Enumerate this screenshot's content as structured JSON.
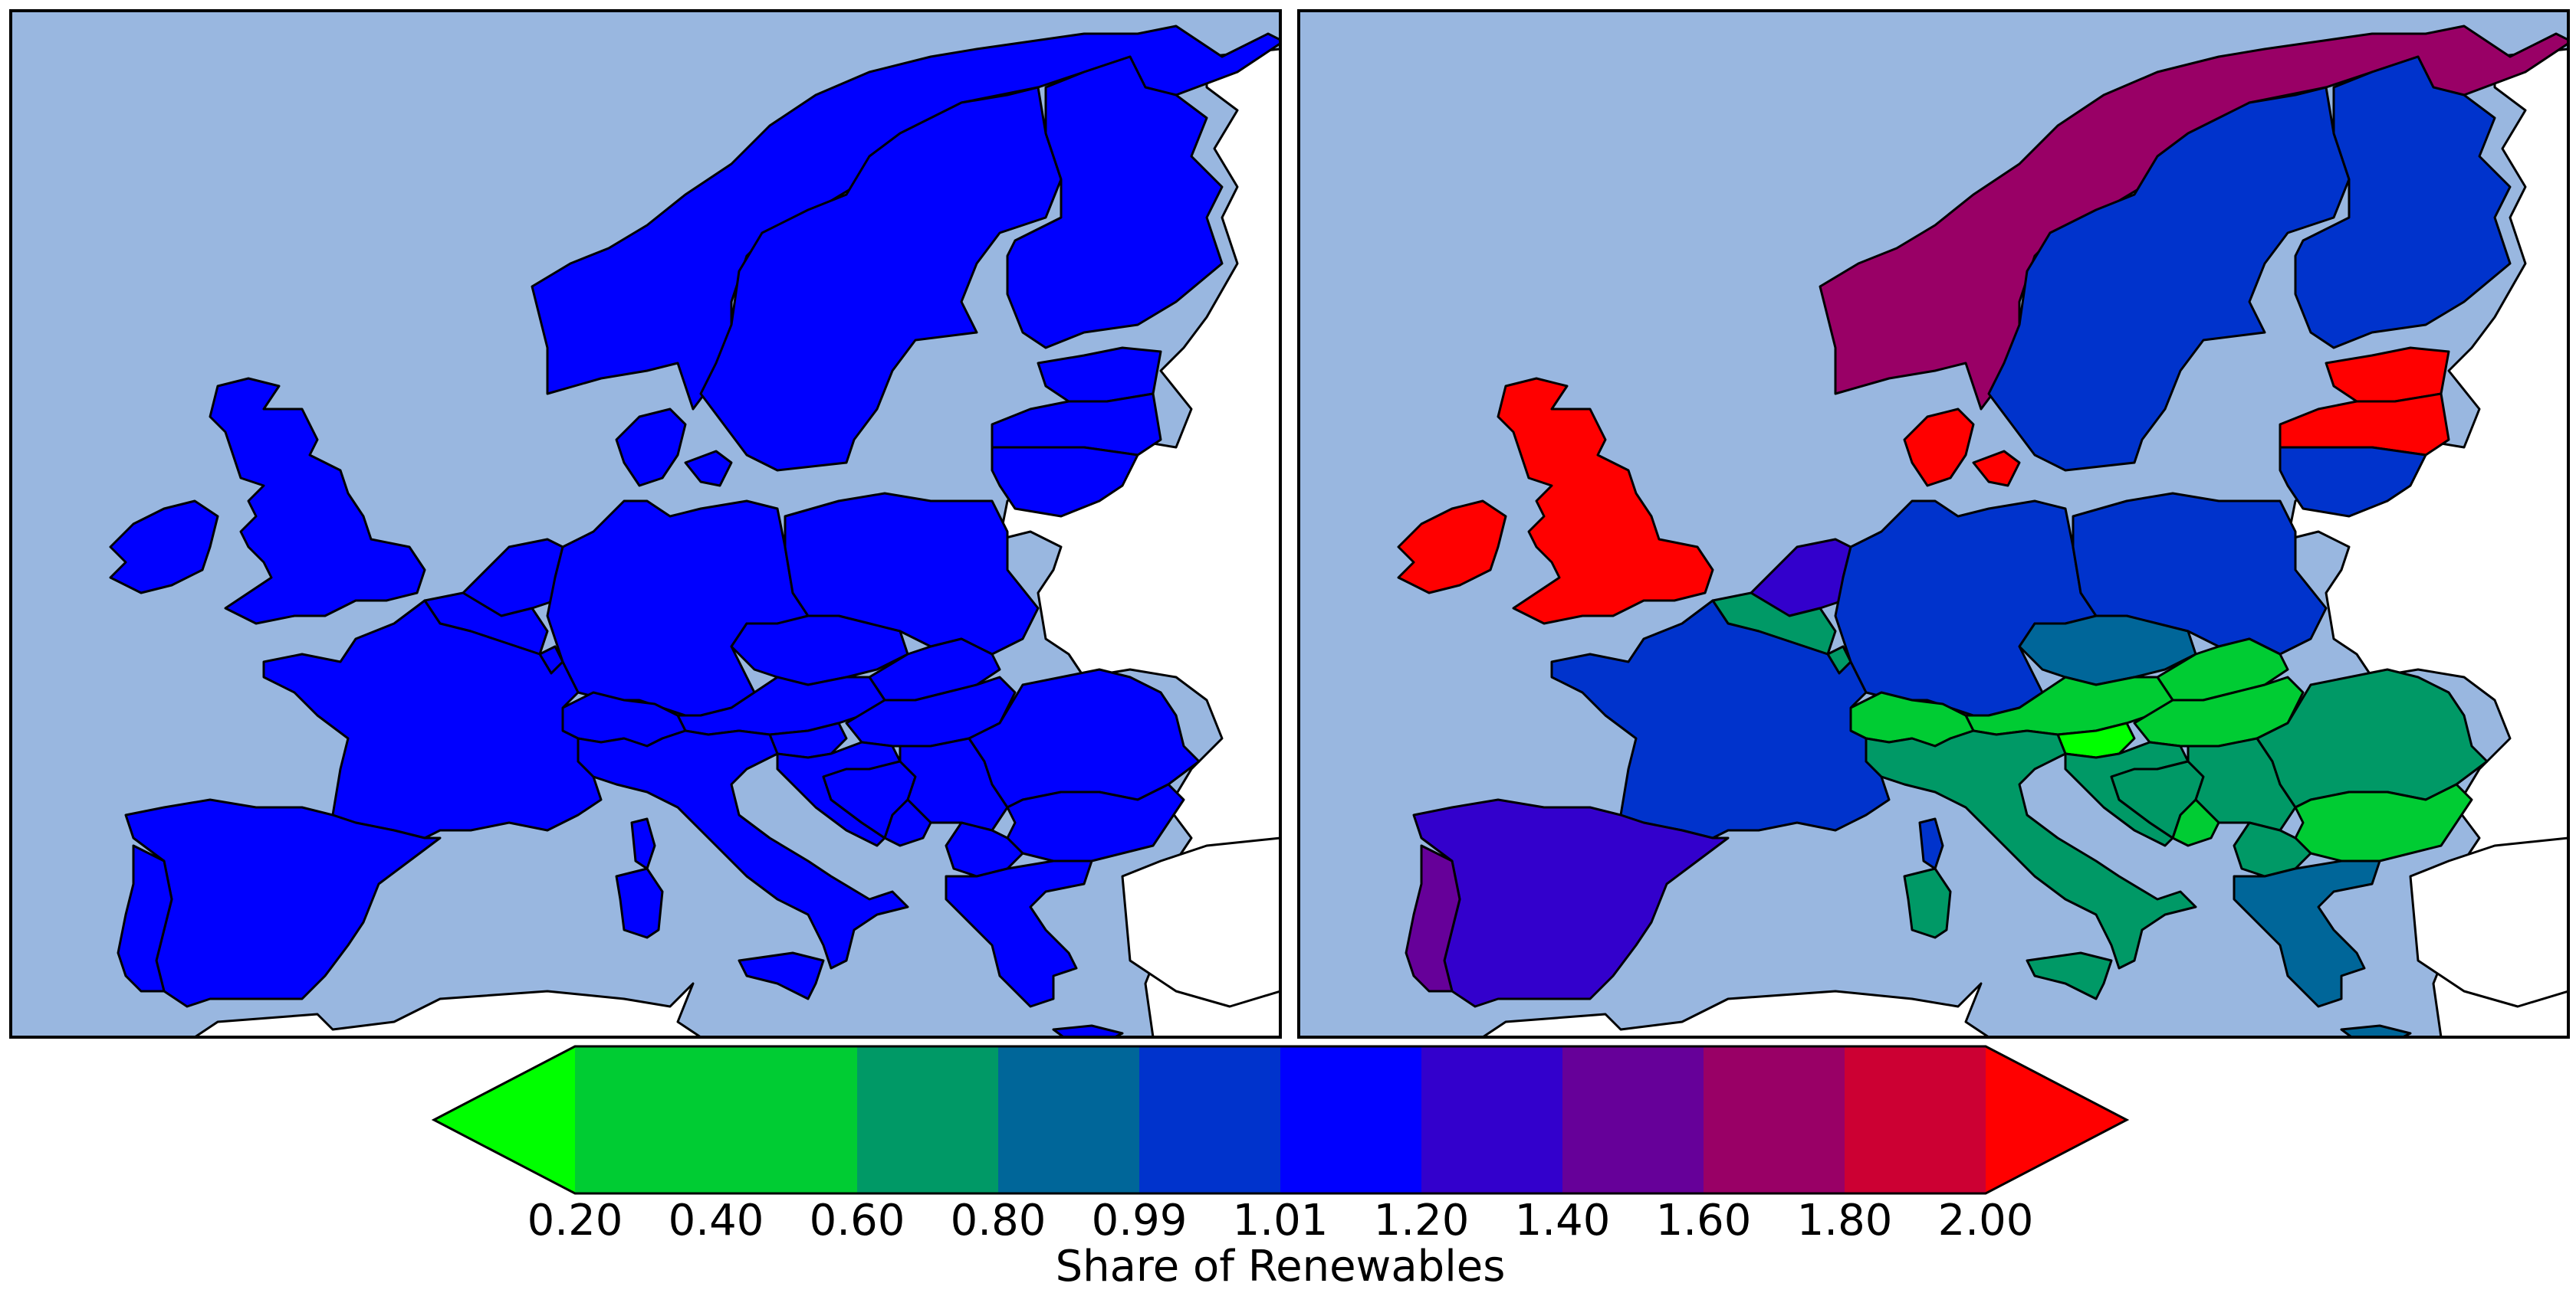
{
  "colors": {
    "sea": "#99b7e0",
    "non_data_land": "#ffffff",
    "border": "#000000"
  },
  "colorbar": {
    "label": "Share of Renewables",
    "extend": "both",
    "boundaries": [
      "0.20",
      "0.40",
      "0.60",
      "0.80",
      "0.99",
      "1.01",
      "1.20",
      "1.40",
      "1.60",
      "1.80",
      "2.00"
    ],
    "under_color": "#00ff00",
    "over_color": "#ff0000",
    "bin_colors": [
      "#00cc33",
      "#00cc33",
      "#009966",
      "#006699",
      "#0033cc",
      "#0000ff",
      "#3300cc",
      "#660099",
      "#990066",
      "#cc0033"
    ]
  },
  "panels": [
    {
      "id": "left",
      "regions": [
        {
          "name": "Norway",
          "color": "#0000ff"
        },
        {
          "name": "Sweden",
          "color": "#0000ff"
        },
        {
          "name": "Finland",
          "color": "#0000ff"
        },
        {
          "name": "Estonia",
          "color": "#0000ff"
        },
        {
          "name": "Latvia",
          "color": "#0000ff"
        },
        {
          "name": "Lithuania",
          "color": "#0000ff"
        },
        {
          "name": "Denmark",
          "color": "#0000ff"
        },
        {
          "name": "Zealand",
          "color": "#0000ff"
        },
        {
          "name": "Great Britain",
          "color": "#0000ff"
        },
        {
          "name": "Ireland",
          "color": "#0000ff"
        },
        {
          "name": "Netherlands",
          "color": "#0000ff"
        },
        {
          "name": "Belgium",
          "color": "#0000ff"
        },
        {
          "name": "Luxembourg",
          "color": "#0000ff"
        },
        {
          "name": "Germany",
          "color": "#0000ff"
        },
        {
          "name": "Poland",
          "color": "#0000ff"
        },
        {
          "name": "Czech Republic",
          "color": "#0000ff"
        },
        {
          "name": "Slovakia",
          "color": "#0000ff"
        },
        {
          "name": "Austria",
          "color": "#0000ff"
        },
        {
          "name": "Switzerland",
          "color": "#0000ff"
        },
        {
          "name": "Hungary",
          "color": "#0000ff"
        },
        {
          "name": "Slovenia",
          "color": "#0000ff"
        },
        {
          "name": "Croatia",
          "color": "#0000ff"
        },
        {
          "name": "Bosnia",
          "color": "#0000ff"
        },
        {
          "name": "Serbia",
          "color": "#0000ff"
        },
        {
          "name": "Romania",
          "color": "#0000ff"
        },
        {
          "name": "Bulgaria",
          "color": "#0000ff"
        },
        {
          "name": "Montenegro",
          "color": "#0000ff"
        },
        {
          "name": "Macedonia",
          "color": "#0000ff"
        },
        {
          "name": "Greece",
          "color": "#0000ff"
        },
        {
          "name": "France",
          "color": "#0000ff"
        },
        {
          "name": "Spain",
          "color": "#0000ff"
        },
        {
          "name": "Portugal",
          "color": "#0000ff"
        },
        {
          "name": "Italy",
          "color": "#0000ff"
        },
        {
          "name": "Sicily",
          "color": "#0000ff"
        },
        {
          "name": "Sardinia",
          "color": "#0000ff"
        },
        {
          "name": "Corsica",
          "color": "#0000ff"
        },
        {
          "name": "Crete",
          "color": "#0000ff"
        }
      ]
    },
    {
      "id": "right",
      "regions": [
        {
          "name": "Norway",
          "color": "#990066"
        },
        {
          "name": "Sweden",
          "color": "#0033cc"
        },
        {
          "name": "Finland",
          "color": "#0033cc"
        },
        {
          "name": "Estonia",
          "color": "#ff0000"
        },
        {
          "name": "Latvia",
          "color": "#ff0000"
        },
        {
          "name": "Lithuania",
          "color": "#0033cc"
        },
        {
          "name": "Denmark",
          "color": "#ff0000"
        },
        {
          "name": "Zealand",
          "color": "#ff0000"
        },
        {
          "name": "Great Britain",
          "color": "#ff0000"
        },
        {
          "name": "Ireland",
          "color": "#ff0000"
        },
        {
          "name": "Netherlands",
          "color": "#3300cc"
        },
        {
          "name": "Belgium",
          "color": "#009966"
        },
        {
          "name": "Luxembourg",
          "color": "#009966"
        },
        {
          "name": "Germany",
          "color": "#0033cc"
        },
        {
          "name": "Poland",
          "color": "#0033cc"
        },
        {
          "name": "Czech Republic",
          "color": "#006699"
        },
        {
          "name": "Slovakia",
          "color": "#00cc33"
        },
        {
          "name": "Austria",
          "color": "#00cc33"
        },
        {
          "name": "Switzerland",
          "color": "#00cc33"
        },
        {
          "name": "Hungary",
          "color": "#00cc33"
        },
        {
          "name": "Slovenia",
          "color": "#00ff00"
        },
        {
          "name": "Croatia",
          "color": "#009966"
        },
        {
          "name": "Bosnia",
          "color": "#009966"
        },
        {
          "name": "Serbia",
          "color": "#009966"
        },
        {
          "name": "Romania",
          "color": "#009966"
        },
        {
          "name": "Bulgaria",
          "color": "#00cc33"
        },
        {
          "name": "Montenegro",
          "color": "#00cc33"
        },
        {
          "name": "Macedonia",
          "color": "#009966"
        },
        {
          "name": "Greece",
          "color": "#006699"
        },
        {
          "name": "France",
          "color": "#0033cc"
        },
        {
          "name": "Spain",
          "color": "#3300cc"
        },
        {
          "name": "Portugal",
          "color": "#660099"
        },
        {
          "name": "Italy",
          "color": "#009966"
        },
        {
          "name": "Sicily",
          "color": "#009966"
        },
        {
          "name": "Sardinia",
          "color": "#009966"
        },
        {
          "name": "Corsica",
          "color": "#0033cc"
        },
        {
          "name": "Crete",
          "color": "#006699"
        }
      ]
    }
  ]
}
